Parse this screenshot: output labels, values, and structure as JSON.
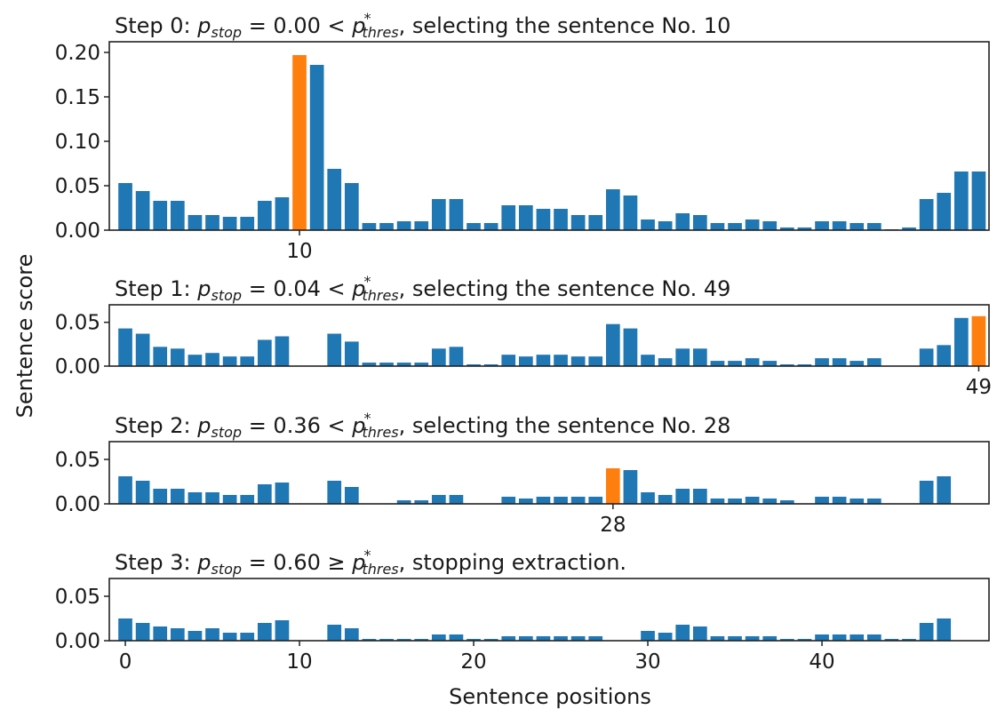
{
  "chart_data": {
    "type": "bar",
    "xlabel": "Sentence positions",
    "ylabel": "Sentence score",
    "colors": {
      "default": "#1f77b4",
      "highlight": "#ff7f0e"
    },
    "grid": false,
    "x": [
      0,
      1,
      2,
      3,
      4,
      5,
      6,
      7,
      8,
      9,
      10,
      11,
      12,
      13,
      14,
      15,
      16,
      17,
      18,
      19,
      20,
      21,
      22,
      23,
      24,
      25,
      26,
      27,
      28,
      29,
      30,
      31,
      32,
      33,
      34,
      35,
      36,
      37,
      38,
      39,
      40,
      41,
      42,
      43,
      44,
      45,
      46,
      47,
      48,
      49
    ],
    "panels": [
      {
        "title": {
          "prefix": "Step 0: ",
          "var": "p",
          "var_sub": "stop",
          "mid": " = 0.00 < ",
          "thr": "p",
          "thr_sup": "*",
          "thr_sub": "thres",
          "suffix": ", selecting the sentence No. 10"
        },
        "highlight": 10,
        "ylim": [
          0,
          0.212
        ],
        "yticks": [
          "0.00",
          "0.05",
          "0.10",
          "0.15",
          "0.20"
        ],
        "xticks": [
          "10"
        ],
        "values": [
          0.053,
          0.044,
          0.033,
          0.033,
          0.017,
          0.017,
          0.015,
          0.015,
          0.033,
          0.037,
          0.197,
          0.186,
          0.069,
          0.053,
          0.008,
          0.008,
          0.01,
          0.01,
          0.035,
          0.035,
          0.008,
          0.008,
          0.028,
          0.028,
          0.024,
          0.024,
          0.017,
          0.017,
          0.046,
          0.039,
          0.012,
          0.01,
          0.019,
          0.017,
          0.008,
          0.008,
          0.012,
          0.01,
          0.003,
          0.003,
          0.01,
          0.01,
          0.008,
          0.008,
          0.001,
          0.003,
          0.035,
          0.042,
          0.066,
          0.066
        ]
      },
      {
        "title": {
          "prefix": "Step 1: ",
          "var": "p",
          "var_sub": "stop",
          "mid": " = 0.04 < ",
          "thr": "p",
          "thr_sup": "*",
          "thr_sub": "thres",
          "suffix": ", selecting the sentence No. 49"
        },
        "highlight": 49,
        "ylim": [
          0,
          0.07
        ],
        "yticks": [
          "0.00",
          "0.05"
        ],
        "xticks": [
          "49"
        ],
        "values": [
          0.043,
          0.037,
          0.022,
          0.02,
          0.013,
          0.015,
          0.011,
          0.011,
          0.03,
          0.034,
          0,
          0,
          0.037,
          0.028,
          0.004,
          0.004,
          0.004,
          0.004,
          0.02,
          0.022,
          0.002,
          0.002,
          0.013,
          0.011,
          0.013,
          0.013,
          0.011,
          0.011,
          0.048,
          0.043,
          0.013,
          0.009,
          0.02,
          0.02,
          0.006,
          0.006,
          0.009,
          0.006,
          0.002,
          0.002,
          0.009,
          0.009,
          0.006,
          0.009,
          0,
          0,
          0.02,
          0.024,
          0.055,
          0.057
        ]
      },
      {
        "title": {
          "prefix": "Step 2: ",
          "var": "p",
          "var_sub": "stop",
          "mid": " = 0.36 < ",
          "thr": "p",
          "thr_sup": "*",
          "thr_sub": "thres",
          "suffix": ", selecting the sentence No. 28"
        },
        "highlight": 28,
        "ylim": [
          0,
          0.07
        ],
        "yticks": [
          "0.00",
          "0.05"
        ],
        "xticks": [
          "28"
        ],
        "values": [
          0.031,
          0.026,
          0.017,
          0.017,
          0.013,
          0.013,
          0.01,
          0.01,
          0.022,
          0.024,
          0,
          0,
          0.026,
          0.019,
          0,
          0,
          0.004,
          0.004,
          0.01,
          0.01,
          0,
          0,
          0.008,
          0.006,
          0.008,
          0.008,
          0.008,
          0.008,
          0.04,
          0.038,
          0.013,
          0.01,
          0.017,
          0.017,
          0.006,
          0.006,
          0.008,
          0.006,
          0.004,
          0,
          0.008,
          0.008,
          0.006,
          0.006,
          0,
          0,
          0.026,
          0.031,
          0,
          0
        ]
      },
      {
        "title": {
          "prefix": "Step 3: ",
          "var": "p",
          "var_sub": "stop",
          "mid": " = 0.60 ≥ ",
          "thr": "p",
          "thr_sup": "*",
          "thr_sub": "thres",
          "suffix": ", stopping extraction."
        },
        "highlight": null,
        "ylim": [
          0,
          0.07
        ],
        "yticks": [
          "0.00",
          "0.05"
        ],
        "xticks": [
          "0",
          "10",
          "20",
          "30",
          "40"
        ],
        "values": [
          0.025,
          0.02,
          0.016,
          0.014,
          0.011,
          0.014,
          0.009,
          0.009,
          0.02,
          0.023,
          0,
          0,
          0.018,
          0.014,
          0.002,
          0.002,
          0.002,
          0.002,
          0.007,
          0.007,
          0.002,
          0.002,
          0.005,
          0.005,
          0.005,
          0.005,
          0.005,
          0.005,
          0,
          0,
          0.011,
          0.009,
          0.018,
          0.016,
          0.005,
          0.005,
          0.005,
          0.005,
          0.002,
          0.002,
          0.007,
          0.007,
          0.007,
          0.007,
          0.002,
          0.002,
          0.02,
          0.025,
          0,
          0
        ]
      }
    ]
  }
}
